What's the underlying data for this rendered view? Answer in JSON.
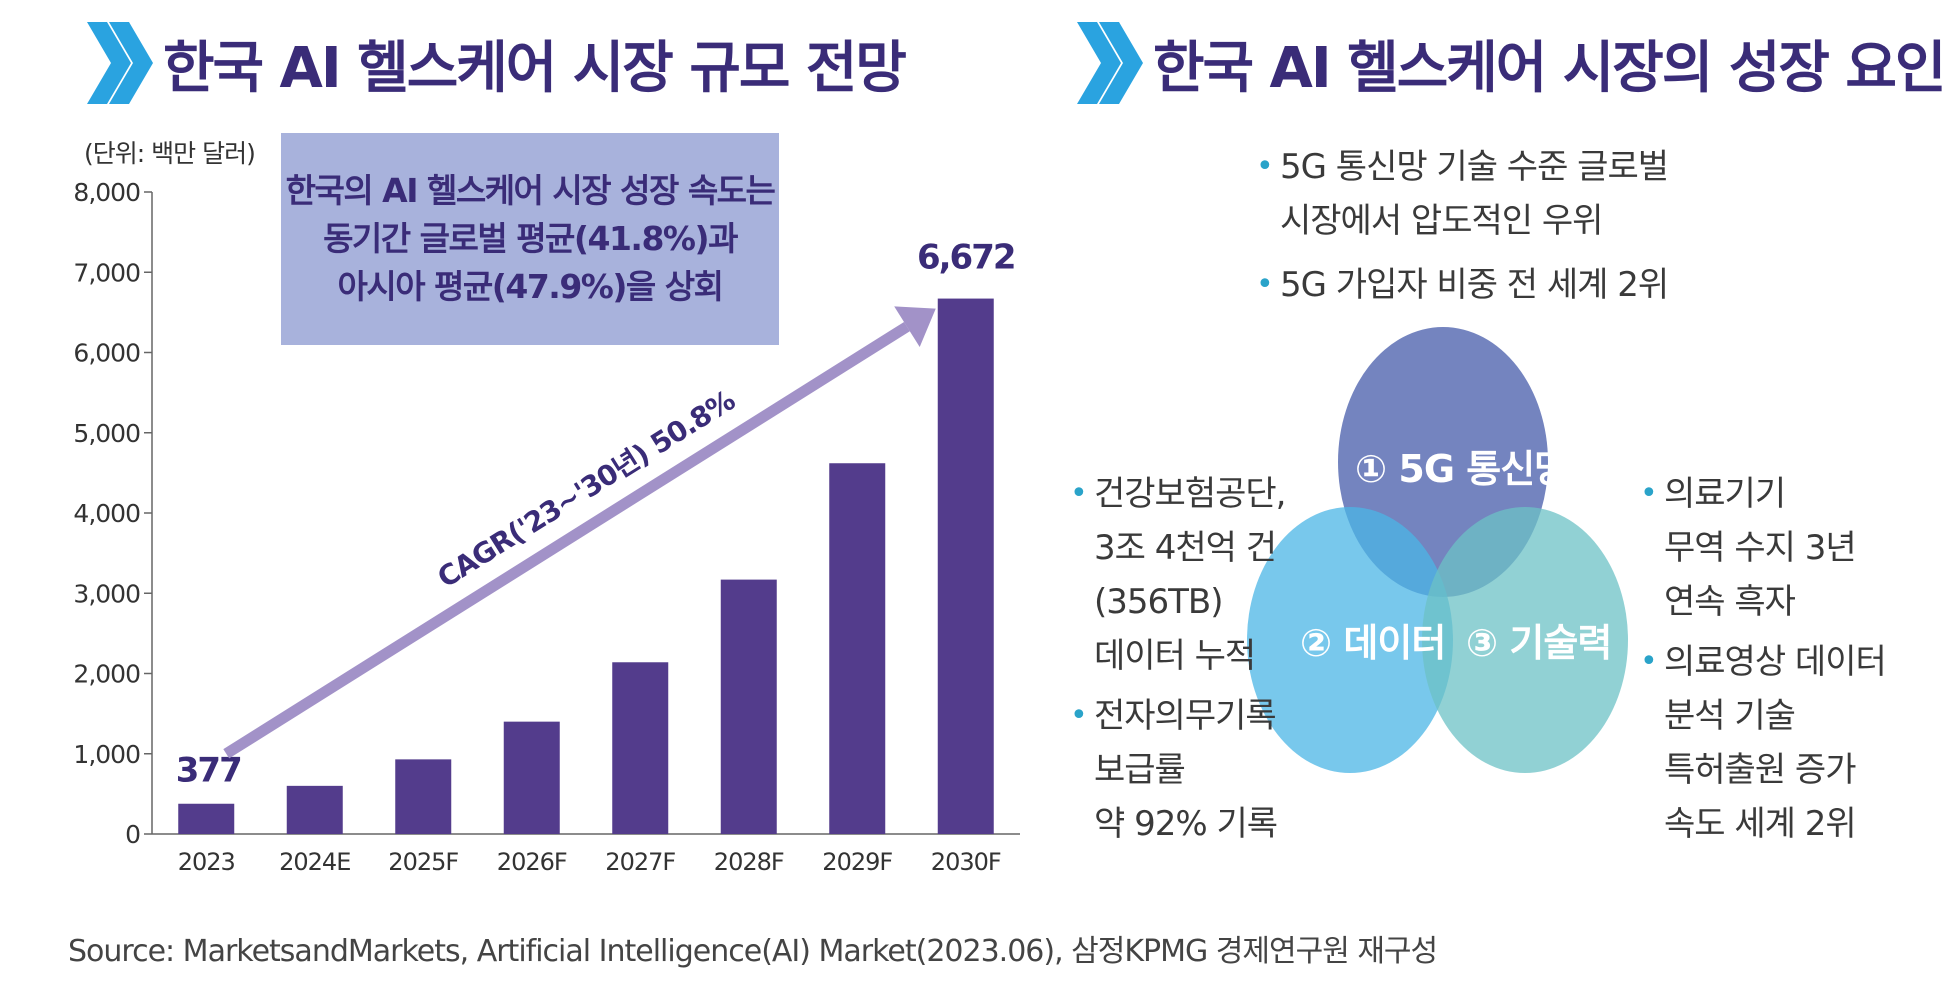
{
  "left_panel": {
    "title": "한국 AI 헬스케어 시장 규모 전망"
  },
  "right_panel": {
    "title": "한국 AI 헬스케어 시장의 성장 요인"
  },
  "callout": {
    "lines": [
      "한국의 AI 헬스케어 시장 성장 속도는",
      "동기간 글로벌 평균(41.8%)과",
      "아시아 평균(47.9%)을 상회"
    ]
  },
  "chart_data": {
    "type": "bar",
    "unit_label": "(단위: 백만 달러)",
    "categories": [
      "2023",
      "2024E",
      "2025F",
      "2026F",
      "2027F",
      "2028F",
      "2029F",
      "2030F"
    ],
    "values": [
      377,
      600,
      930,
      1400,
      2140,
      3170,
      4620,
      6672
    ],
    "data_labels": {
      "first": "377",
      "last": "6,672"
    },
    "ylim": [
      0,
      8000
    ],
    "yticks": [
      "0",
      "1,000",
      "2,000",
      "3,000",
      "4,000",
      "5,000",
      "6,000",
      "7,000",
      "8,000"
    ],
    "cagr_label": "CAGR('23~'30년) 50.8%",
    "bar_color": "#533c8c",
    "arrow_color": "#a292c8"
  },
  "venn": {
    "circles": [
      {
        "label": "① 5G 통신망",
        "color": "#5c6eb4"
      },
      {
        "label": "② 데이터",
        "color": "#4bb6e6"
      },
      {
        "label": "③ 기술력",
        "color": "#6cc2c6"
      }
    ]
  },
  "bullets_top": [
    {
      "lines": [
        "5G 통신망 기술 수준 글로벌",
        "시장에서 압도적인 우위"
      ]
    },
    {
      "lines": [
        "5G 가입자 비중 전 세계 2위"
      ]
    }
  ],
  "bullets_left": [
    {
      "lines": [
        "건강보험공단,",
        "3조 4천억 건",
        "(356TB)",
        "데이터 누적"
      ]
    },
    {
      "lines": [
        "전자의무기록",
        "보급률",
        "약 92% 기록"
      ]
    }
  ],
  "bullets_right": [
    {
      "lines": [
        "의료기기",
        "무역 수지 3년",
        "연속 흑자"
      ]
    },
    {
      "lines": [
        "의료영상 데이터",
        "분석 기술",
        "특허출원 증가",
        "속도 세계 2위"
      ]
    }
  ],
  "source": "Source: MarketsandMarkets, Artificial Intelligence(AI) Market(2023.06), 삼정KPMG 경제연구원 재구성",
  "colors": {
    "title": "#3a2c78",
    "chevron": "#2aa3e0",
    "bullet_dot": "#2aa3c9"
  }
}
